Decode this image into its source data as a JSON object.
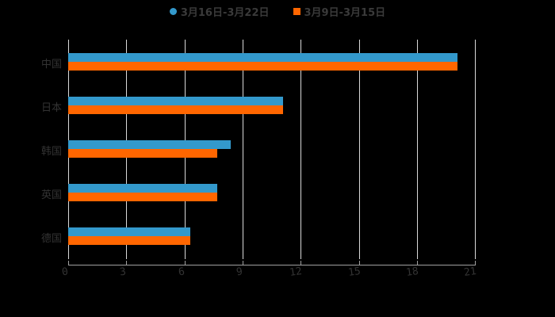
{
  "legend": {
    "series1": {
      "label": "3月16日-3月22日",
      "color": "#3399cc",
      "marker": "circle"
    },
    "series2": {
      "label": "3月9日-3月15日",
      "color": "#ff6600",
      "marker": "square"
    }
  },
  "xaxis": {
    "ticks": [
      "0",
      "3",
      "6",
      "9",
      "12",
      "15",
      "18",
      "21"
    ]
  },
  "yaxis": {
    "labels": [
      "中国",
      "日本",
      "韩国",
      "英国",
      "德国"
    ]
  },
  "chart_data": {
    "type": "bar",
    "orientation": "horizontal",
    "title": "",
    "xlabel": "",
    "ylabel": "",
    "categories": [
      "中国",
      "日本",
      "韩国",
      "英国",
      "德国"
    ],
    "series": [
      {
        "name": "3月16日-3月22日",
        "color": "#3399cc",
        "values": [
          20.1,
          11.1,
          8.4,
          7.7,
          6.3
        ]
      },
      {
        "name": "3月9日-3月15日",
        "color": "#ff6600",
        "values": [
          20.1,
          11.1,
          7.7,
          7.7,
          6.3
        ]
      }
    ],
    "xlim": [
      0,
      21
    ],
    "xticks": [
      0,
      3,
      6,
      9,
      12,
      15,
      18,
      21
    ],
    "grid": "vertical",
    "legend_position": "top"
  }
}
